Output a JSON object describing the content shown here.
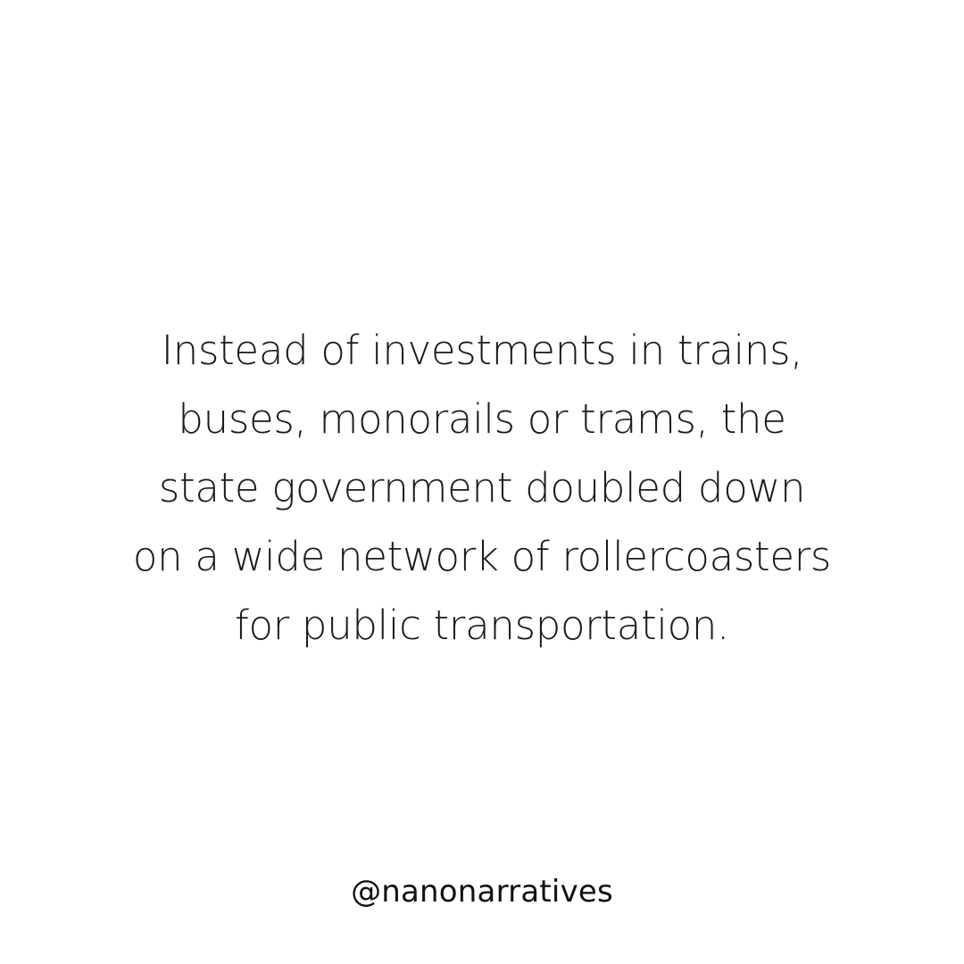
{
  "post": {
    "quote_lines": [
      "Instead of investments in trains,",
      "buses, monorails or trams, the",
      "state government doubled down",
      "on a wide network of rollercoasters",
      "for public transportation."
    ],
    "handle": "@nanonarratives"
  },
  "colors": {
    "background": "#ffffff",
    "text": "#1a1a1a"
  }
}
